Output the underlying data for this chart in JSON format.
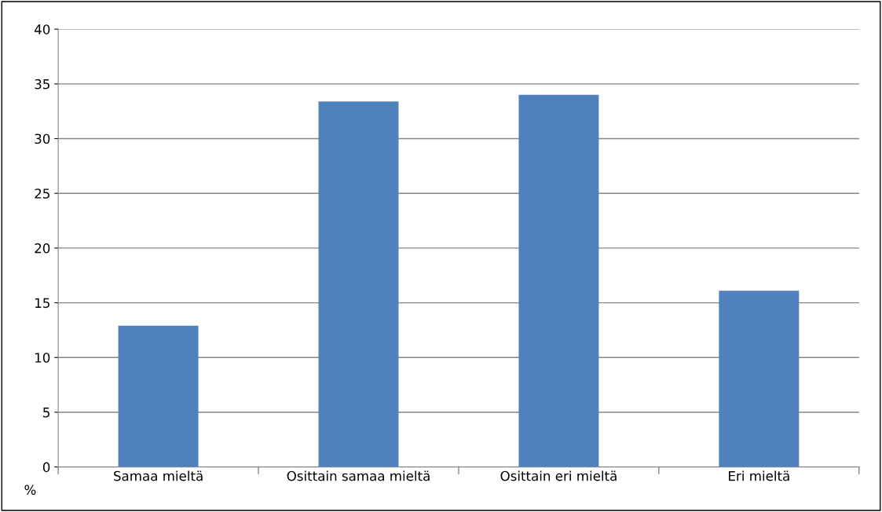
{
  "chart_data": {
    "type": "bar",
    "ylabel": "%",
    "categories": [
      "Samaa mieltä",
      "Osittain samaa mieltä",
      "Osittain eri mieltä",
      "Eri mieltä"
    ],
    "values": [
      12.9,
      33.4,
      34.0,
      16.1
    ],
    "color": "#4f81bd",
    "ylim": [
      0,
      40
    ],
    "yticks": [
      0,
      5,
      10,
      15,
      20,
      25,
      30,
      35,
      40
    ],
    "grid": "y",
    "legend": false
  }
}
